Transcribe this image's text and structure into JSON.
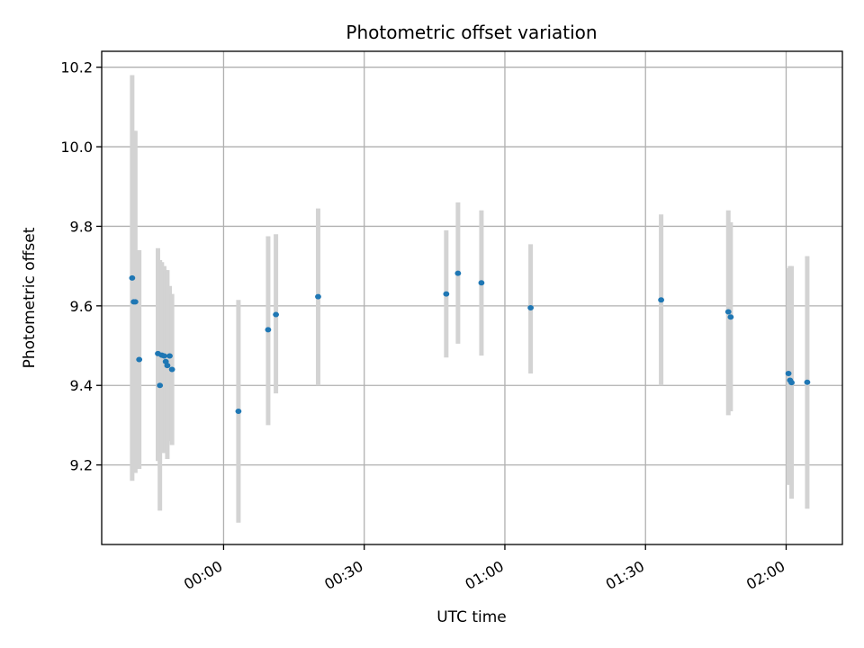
{
  "chart_data": {
    "type": "scatter",
    "title": "Photometric offset variation",
    "xlabel": "UTC time",
    "ylabel": "Photometric offset",
    "x_ticks": [
      "00:00",
      "00:30",
      "01:00",
      "01:30",
      "02:00"
    ],
    "y_ticks": [
      "9.2",
      "9.4",
      "9.6",
      "9.8",
      "10.0",
      "10.2"
    ],
    "xlim": [
      "23:34",
      "02:12"
    ],
    "ylim": [
      9.0,
      10.24
    ],
    "grid": true,
    "marker_color": "#1f77b4",
    "errorbar_color": "#d3d3d3",
    "points": [
      {
        "time": "23:40:30",
        "value": 9.67,
        "lower": 9.16,
        "upper": 10.18
      },
      {
        "time": "23:40:50",
        "value": 9.61,
        "lower": 9.18,
        "upper": 10.04
      },
      {
        "time": "23:41:10",
        "value": 9.61,
        "lower": 9.18,
        "upper": 10.04
      },
      {
        "time": "23:42:00",
        "value": 9.465,
        "lower": 9.19,
        "upper": 9.74
      },
      {
        "time": "23:46:00",
        "value": 9.48,
        "lower": 9.21,
        "upper": 9.745
      },
      {
        "time": "23:46:25",
        "value": 9.4,
        "lower": 9.085,
        "upper": 9.715
      },
      {
        "time": "23:46:50",
        "value": 9.476,
        "lower": 9.23,
        "upper": 9.71
      },
      {
        "time": "23:47:20",
        "value": 9.474,
        "lower": 9.25,
        "upper": 9.7
      },
      {
        "time": "23:47:40",
        "value": 9.46,
        "lower": 9.23,
        "upper": 9.69
      },
      {
        "time": "23:48:00",
        "value": 9.45,
        "lower": 9.215,
        "upper": 9.69
      },
      {
        "time": "23:48:30",
        "value": 9.474,
        "lower": 9.26,
        "upper": 9.65
      },
      {
        "time": "23:49:00",
        "value": 9.44,
        "lower": 9.25,
        "upper": 9.63
      },
      {
        "time": "00:03:10",
        "value": 9.335,
        "lower": 9.055,
        "upper": 9.615
      },
      {
        "time": "00:09:30",
        "value": 9.54,
        "lower": 9.3,
        "upper": 9.775
      },
      {
        "time": "00:11:10",
        "value": 9.578,
        "lower": 9.38,
        "upper": 9.78
      },
      {
        "time": "00:20:10",
        "value": 9.623,
        "lower": 9.4,
        "upper": 9.845
      },
      {
        "time": "00:47:30",
        "value": 9.63,
        "lower": 9.47,
        "upper": 9.79
      },
      {
        "time": "00:50:00",
        "value": 9.682,
        "lower": 9.505,
        "upper": 9.86
      },
      {
        "time": "00:55:00",
        "value": 9.658,
        "lower": 9.475,
        "upper": 9.84
      },
      {
        "time": "01:05:30",
        "value": 9.595,
        "lower": 9.43,
        "upper": 9.755
      },
      {
        "time": "01:33:20",
        "value": 9.615,
        "lower": 9.4,
        "upper": 9.83
      },
      {
        "time": "01:47:40",
        "value": 9.585,
        "lower": 9.325,
        "upper": 9.84
      },
      {
        "time": "01:48:10",
        "value": 9.572,
        "lower": 9.335,
        "upper": 9.81
      },
      {
        "time": "02:00:30",
        "value": 9.43,
        "lower": 9.15,
        "upper": 9.695
      },
      {
        "time": "02:00:50",
        "value": 9.413,
        "lower": 9.15,
        "upper": 9.7
      },
      {
        "time": "02:01:10",
        "value": 9.407,
        "lower": 9.115,
        "upper": 9.7
      },
      {
        "time": "02:04:30",
        "value": 9.408,
        "lower": 9.09,
        "upper": 9.725
      }
    ]
  }
}
